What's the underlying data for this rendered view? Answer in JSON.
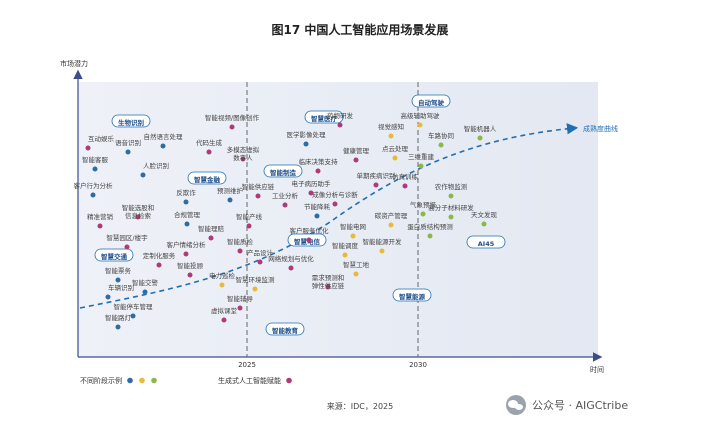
{
  "chart_data": {
    "type": "scatter",
    "title": "图17 中国人工智能应用场景发展",
    "ylabel": "市场潜力",
    "xlabel": "时间",
    "x_ticks": [
      "2025",
      "2030"
    ],
    "curve_label": "成熟度曲线",
    "legend": [
      {
        "label": "不同阶段示例",
        "colors": [
          "#2e6ca4",
          "#e8b93a",
          "#8bb84a"
        ]
      },
      {
        "label": "生成式人工智能赋能",
        "colors": [
          "#b03a78"
        ]
      }
    ],
    "clusters": [
      "生物识别",
      "智慧金融",
      "智能制造",
      "智慧医疗",
      "自动驾驶",
      "智慧交通",
      "智慧电信",
      "智能教育",
      "智慧能源",
      "AI45"
    ],
    "items": [
      {
        "label": "互动娱乐",
        "color": "#b03a78"
      },
      {
        "label": "语音识别",
        "color": "#2e6ca4"
      },
      {
        "label": "自然语言处理",
        "color": "#2e6ca4"
      },
      {
        "label": "智能客服",
        "color": "#2e6ca4"
      },
      {
        "label": "人脸识别",
        "color": "#2e6ca4"
      },
      {
        "label": "客户行为分析",
        "color": "#2e6ca4"
      },
      {
        "label": "智能选股和信息检索",
        "color": "#b03a78"
      },
      {
        "label": "精准营销",
        "color": "#b03a78"
      },
      {
        "label": "智慧园区/楼宇",
        "color": "#b03a78"
      },
      {
        "label": "定制化服务",
        "color": "#b03a78"
      },
      {
        "label": "智能票务",
        "color": "#2e6ca4"
      },
      {
        "label": "车辆识别",
        "color": "#2e6ca4"
      },
      {
        "label": "智能交警",
        "color": "#2e6ca4"
      },
      {
        "label": "智能路灯",
        "color": "#2e6ca4"
      },
      {
        "label": "智能停车管理",
        "color": "#2e6ca4"
      },
      {
        "label": "智能视频/图像创作",
        "color": "#b03a78"
      },
      {
        "label": "代码生成",
        "color": "#b03a78"
      },
      {
        "label": "多模态虚拟数字人",
        "color": "#b03a78"
      },
      {
        "label": "反欺诈",
        "color": "#2e6ca4"
      },
      {
        "label": "预测维护",
        "color": "#2e6ca4"
      },
      {
        "label": "智能供应链",
        "color": "#b03a78"
      },
      {
        "label": "合规管理",
        "color": "#2e6ca4"
      },
      {
        "label": "智能理赔",
        "color": "#b03a78"
      },
      {
        "label": "智能产线",
        "color": "#b03a78"
      },
      {
        "label": "客户情绪分析",
        "color": "#b03a78"
      },
      {
        "label": "智能质检",
        "color": "#b03a78"
      },
      {
        "label": "智能投顾",
        "color": "#b03a78"
      },
      {
        "label": "电力巡检",
        "color": "#e8b93a"
      },
      {
        "label": "智能辅导",
        "color": "#b03a78"
      },
      {
        "label": "虚拟课堂",
        "color": "#b03a78"
      },
      {
        "label": "智慧环境监测",
        "color": "#e8b93a"
      },
      {
        "label": "医学影像处理",
        "color": "#2e6ca4"
      },
      {
        "label": "药物研发",
        "color": "#b03a78"
      },
      {
        "label": "临床决策支持",
        "color": "#b03a78"
      },
      {
        "label": "健康管理",
        "color": "#b03a78"
      },
      {
        "label": "电子病历助手",
        "color": "#b03a78"
      },
      {
        "label": "工业分析",
        "color": "#b03a78"
      },
      {
        "label": "成像分析与诊断",
        "color": "#b03a78"
      },
      {
        "label": "节能降耗",
        "color": "#2e6ca4"
      },
      {
        "label": "产品设计",
        "color": "#b03a78"
      },
      {
        "label": "客户服务优化",
        "color": "#b03a78"
      },
      {
        "label": "网络规划与优化",
        "color": "#b03a78"
      },
      {
        "label": "智能电网",
        "color": "#e8b93a"
      },
      {
        "label": "智能调度",
        "color": "#e8b93a"
      },
      {
        "label": "智慧工地",
        "color": "#e8b93a"
      },
      {
        "label": "需求预测和弹性供应链",
        "color": "#b03a78"
      },
      {
        "label": "视觉感知",
        "color": "#e8b93a"
      },
      {
        "label": "高级辅助驾驶",
        "color": "#e8b93a"
      },
      {
        "label": "点云处理",
        "color": "#e8b93a"
      },
      {
        "label": "车路协同",
        "color": "#8bb84a"
      },
      {
        "label": "三维重建",
        "color": "#8bb84a"
      },
      {
        "label": "智能机器人",
        "color": "#8bb84a"
      },
      {
        "label": "单期疾病识别",
        "color": "#b03a78"
      },
      {
        "label": "仿真训练",
        "color": "#b03a78"
      },
      {
        "label": "农作物监测",
        "color": "#8bb84a"
      },
      {
        "label": "气象预报",
        "color": "#8bb84a"
      },
      {
        "label": "高分子材料研发",
        "color": "#8bb84a"
      },
      {
        "label": "天文发现",
        "color": "#8bb84a"
      },
      {
        "label": "碳资产管理",
        "color": "#e8b93a"
      },
      {
        "label": "蛋白质结构预测",
        "color": "#8bb84a"
      },
      {
        "label": "智能能源开发",
        "color": "#e8b93a"
      }
    ]
  },
  "footer": {
    "source": "来源：IDC，2025",
    "watermark": "公众号 · AIGCtribe"
  }
}
